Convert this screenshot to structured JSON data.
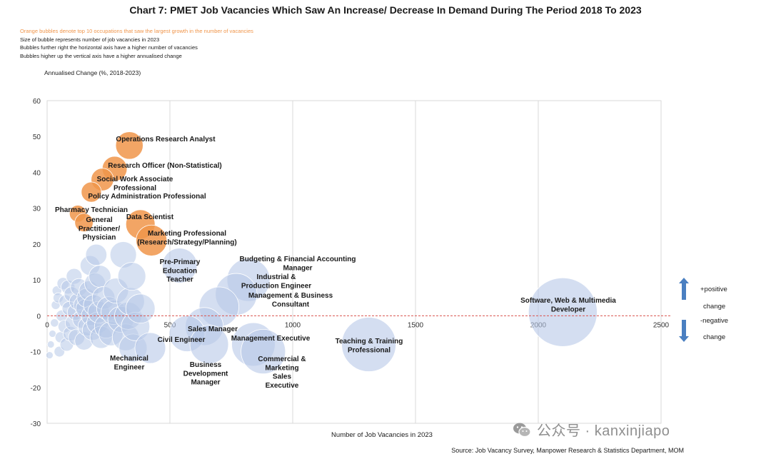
{
  "title": "Chart 7: PMET Job Vacancies Which Saw An Increase/ Decrease In Demand During The Period 2018 To 2023",
  "notes": [
    "Orange bubbles denote top 10 occupations that saw the largest growth in the number of vacancies",
    "Size of bubble represents number of job vacancies in 2023",
    "Bubbles further right the horizontal axis have a higher number of vacancies",
    "Bubbles higher up the vertical axis have a higher annualised change"
  ],
  "colors": {
    "orange": "#f0954a",
    "blue": "#b7c8e8",
    "arrow": "#4a7fc1",
    "zero_line": "#d9534f"
  },
  "side_legend": {
    "positive": [
      "+positive",
      "change"
    ],
    "negative": [
      "-negative",
      "change"
    ]
  },
  "source": "Source: Job Vacancy Survey, Manpower Research & Statistics Department, MOM",
  "watermark": "公众号 · kanxinjiapo",
  "chart_data": {
    "type": "bubble",
    "ylabel": "Annualised Change (%, 2018-2023)",
    "xlabel": "Number of Job Vacancies in 2023",
    "xlim": [
      0,
      2500
    ],
    "ylim": [
      -30,
      60
    ],
    "xticks": [
      "0",
      "500",
      "1000",
      "1500",
      "2000",
      "2500"
    ],
    "yticks": [
      "-30",
      "-20",
      "-10",
      "0",
      "10",
      "20",
      "30",
      "40",
      "50",
      "60"
    ],
    "grid": "vertical",
    "labeled": [
      {
        "label": "Operations Research Analyst",
        "x": 335,
        "y": 47.5,
        "size": 335,
        "group": "top10"
      },
      {
        "label": "Research Officer (Non-Statistical)",
        "x": 275,
        "y": 41,
        "size": 275,
        "group": "top10"
      },
      {
        "label": "Social Work Associate Professional",
        "x": 225,
        "y": 38,
        "size": 225,
        "group": "top10"
      },
      {
        "label": "Policy Administration Professional",
        "x": 180,
        "y": 34.5,
        "size": 180,
        "group": "top10"
      },
      {
        "label": "Pharmacy Technician",
        "x": 125,
        "y": 28.5,
        "size": 125,
        "group": "top10"
      },
      {
        "label": "General Practitioner/ Physician",
        "x": 150,
        "y": 26,
        "size": 150,
        "group": "top10"
      },
      {
        "label": "Data Scientist",
        "x": 380,
        "y": 25.5,
        "size": 380,
        "group": "top10"
      },
      {
        "label": "Marketing Professional (Research/Strategy/Planning)",
        "x": 425,
        "y": 21,
        "size": 425,
        "group": "top10"
      },
      {
        "label": "Pre-Primary Education Teacher",
        "x": 540,
        "y": 14,
        "size": 540,
        "group": "other"
      },
      {
        "label": "Budgeting & Financial Accounting Manager",
        "x": 820,
        "y": 10,
        "size": 820,
        "group": "other"
      },
      {
        "label": "Industrial & Production Engineer",
        "x": 770,
        "y": 6,
        "size": 770,
        "group": "other"
      },
      {
        "label": "Management & Business Consultant",
        "x": 700,
        "y": 2.5,
        "size": 700,
        "group": "other"
      },
      {
        "label": "Software, Web & Multimedia Developer",
        "x": 2100,
        "y": 1,
        "size": 2100,
        "group": "other"
      },
      {
        "label": "Sales Manager",
        "x": 640,
        "y": -3,
        "size": 640,
        "group": "other"
      },
      {
        "label": "Civil Engineer",
        "x": 570,
        "y": -5,
        "size": 570,
        "group": "other"
      },
      {
        "label": "Management Executive",
        "x": 840,
        "y": -8,
        "size": 840,
        "group": "other"
      },
      {
        "label": "Teaching & Training Professional",
        "x": 1310,
        "y": -8,
        "size": 1310,
        "group": "other"
      },
      {
        "label": "Mechanical Engineer",
        "x": 420,
        "y": -9,
        "size": 420,
        "group": "other"
      },
      {
        "label": "Business Development Manager",
        "x": 660,
        "y": -8,
        "size": 660,
        "group": "other"
      },
      {
        "label": "Commercial & Marketing Sales Executive",
        "x": 880,
        "y": -10,
        "size": 880,
        "group": "other"
      }
    ],
    "unlabeled": [
      [
        10,
        -11
      ],
      [
        15,
        -8
      ],
      [
        22,
        -5
      ],
      [
        30,
        -2
      ],
      [
        35,
        3
      ],
      [
        40,
        7
      ],
      [
        45,
        5
      ],
      [
        50,
        -10
      ],
      [
        55,
        -6
      ],
      [
        60,
        0
      ],
      [
        65,
        9
      ],
      [
        70,
        -3
      ],
      [
        75,
        4
      ],
      [
        80,
        -8
      ],
      [
        85,
        8
      ],
      [
        90,
        2
      ],
      [
        95,
        -5
      ],
      [
        100,
        6
      ],
      [
        105,
        -2
      ],
      [
        110,
        11
      ],
      [
        115,
        1
      ],
      [
        120,
        -6
      ],
      [
        125,
        4
      ],
      [
        130,
        8
      ],
      [
        140,
        -1
      ],
      [
        145,
        3
      ],
      [
        150,
        -7
      ],
      [
        155,
        2
      ],
      [
        160,
        5
      ],
      [
        165,
        -3
      ],
      [
        170,
        7
      ],
      [
        175,
        14
      ],
      [
        180,
        0
      ],
      [
        185,
        -4
      ],
      [
        190,
        3
      ],
      [
        195,
        9
      ],
      [
        200,
        17
      ],
      [
        205,
        -2
      ],
      [
        210,
        1
      ],
      [
        215,
        11
      ],
      [
        220,
        -6
      ],
      [
        230,
        5
      ],
      [
        240,
        -3
      ],
      [
        250,
        2
      ],
      [
        260,
        -5
      ],
      [
        270,
        1
      ],
      [
        280,
        7
      ],
      [
        300,
        -1
      ],
      [
        310,
        17
      ],
      [
        320,
        -6
      ],
      [
        330,
        0
      ],
      [
        340,
        4
      ],
      [
        345,
        11
      ],
      [
        350,
        -9
      ],
      [
        360,
        -3
      ],
      [
        380,
        2
      ]
    ]
  }
}
